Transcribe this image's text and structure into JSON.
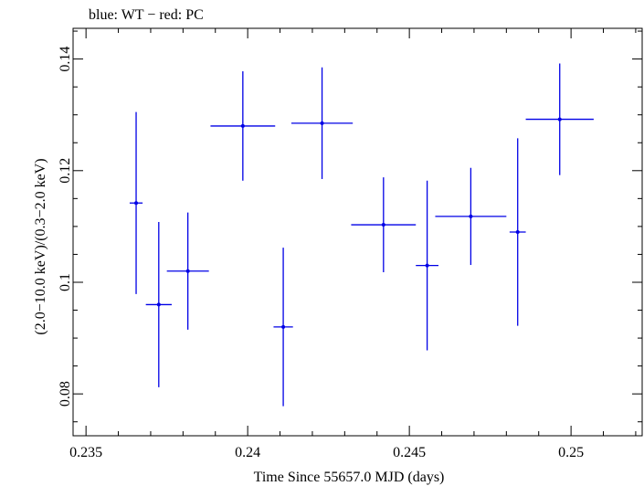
{
  "chart_data": {
    "type": "scatter",
    "title": "blue: WT − red: PC",
    "xlabel": "Time Since 55657.0 MJD (days)",
    "ylabel": "(2.0−10.0 keV)/(0.3−2.0 keV)",
    "xlim": [
      0.2346,
      0.2522
    ],
    "ylim": [
      0.0725,
      0.1455
    ],
    "x_ticks": [
      0.235,
      0.24,
      0.245,
      0.25
    ],
    "x_tick_labels": [
      "0.235",
      "0.24",
      "0.245",
      "0.25"
    ],
    "y_ticks": [
      0.08,
      0.1,
      0.12,
      0.14
    ],
    "y_tick_labels": [
      "0.08",
      "0.1",
      "0.12",
      "0.14"
    ],
    "grid": false,
    "series": [
      {
        "color": "#0000e6",
        "points": [
          {
            "x": 0.23655,
            "y": 0.1142,
            "xerr": 0.0002,
            "yerr_low": 0.0163,
            "yerr_high": 0.0163
          },
          {
            "x": 0.23725,
            "y": 0.096,
            "xerr": 0.0004,
            "yerr_low": 0.0148,
            "yerr_high": 0.0148
          },
          {
            "x": 0.23815,
            "y": 0.102,
            "xerr": 0.00065,
            "yerr_low": 0.0105,
            "yerr_high": 0.0105
          },
          {
            "x": 0.23985,
            "y": 0.128,
            "xerr": 0.001,
            "yerr_low": 0.0098,
            "yerr_high": 0.0098
          },
          {
            "x": 0.2411,
            "y": 0.092,
            "xerr": 0.0003,
            "yerr_low": 0.0142,
            "yerr_high": 0.0142
          },
          {
            "x": 0.2423,
            "y": 0.1285,
            "xerr": 0.00095,
            "yerr_low": 0.01,
            "yerr_high": 0.01
          },
          {
            "x": 0.2442,
            "y": 0.1103,
            "xerr": 0.001,
            "yerr_low": 0.0085,
            "yerr_high": 0.0085
          },
          {
            "x": 0.24555,
            "y": 0.103,
            "xerr": 0.00035,
            "yerr_low": 0.0152,
            "yerr_high": 0.0152
          },
          {
            "x": 0.2469,
            "y": 0.1118,
            "xerr": 0.0011,
            "yerr_low": 0.0087,
            "yerr_high": 0.0087
          },
          {
            "x": 0.24835,
            "y": 0.109,
            "xerr": 0.00025,
            "yerr_low": 0.0168,
            "yerr_high": 0.0168
          },
          {
            "x": 0.24965,
            "y": 0.1292,
            "xerr": 0.00105,
            "yerr_low": 0.01,
            "yerr_high": 0.01
          }
        ]
      }
    ]
  }
}
